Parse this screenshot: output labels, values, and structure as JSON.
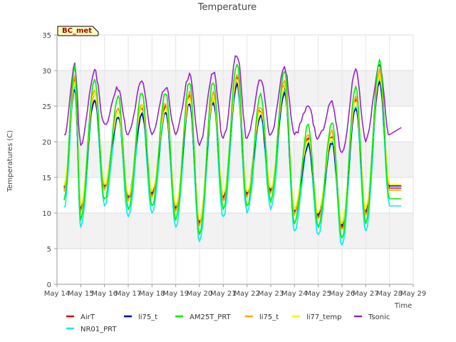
{
  "chart_data": {
    "type": "line",
    "title": "Temperature",
    "badge": "BC_met",
    "xlabel": "Time",
    "ylabel": "Temperatures (C)",
    "xlim": [
      14,
      29
    ],
    "ylim": [
      0,
      35
    ],
    "x_ticks": [
      {
        "day": 14,
        "label": "May 14"
      },
      {
        "day": 15,
        "label": "May 15"
      },
      {
        "day": 16,
        "label": "May 16"
      },
      {
        "day": 17,
        "label": "May 17"
      },
      {
        "day": 18,
        "label": "May 18"
      },
      {
        "day": 19,
        "label": "May 19"
      },
      {
        "day": 20,
        "label": "May 20"
      },
      {
        "day": 21,
        "label": "May 21"
      },
      {
        "day": 22,
        "label": "May 22"
      },
      {
        "day": 23,
        "label": "May 23"
      },
      {
        "day": 24,
        "label": "May 24"
      },
      {
        "day": 25,
        "label": "May 25"
      },
      {
        "day": 26,
        "label": "May 26"
      },
      {
        "day": 27,
        "label": "May 27"
      },
      {
        "day": 28,
        "label": "May 28"
      },
      {
        "day": 29,
        "label": "May 29"
      }
    ],
    "y_ticks": [
      0,
      5,
      10,
      15,
      20,
      25,
      30,
      35
    ],
    "shaded_bands": [
      [
        5,
        10
      ],
      [
        15,
        20
      ],
      [
        25,
        30
      ]
    ],
    "daily_extremes": {
      "days": [
        14.3,
        15,
        16,
        17,
        18,
        19,
        20,
        21,
        22,
        23,
        24,
        25,
        26,
        27,
        28,
        28.5
      ],
      "air_min": [
        13.3,
        10.5,
        13.5,
        12.0,
        12.5,
        10.5,
        8.5,
        12.0,
        12.5,
        13.0,
        10.0,
        9.5,
        8.0,
        10.0,
        13.5,
        13.5
      ],
      "air_max": [
        null,
        28.5,
        27.0,
        24.5,
        25.0,
        25.0,
        26.5,
        26.5,
        29.0,
        24.5,
        28.0,
        20.5,
        21.0,
        26.0,
        29.5,
        null
      ],
      "tsonic_min": [
        21.0,
        19.5,
        22.5,
        21.0,
        21.0,
        21.0,
        19.5,
        20.5,
        20.5,
        21.0,
        21.0,
        20.5,
        18.5,
        20.0,
        21.0,
        22.0
      ],
      "tsonic_max": [
        null,
        30.7,
        29.9,
        27.5,
        28.4,
        27.5,
        29.3,
        29.8,
        32.2,
        28.6,
        30.3,
        24.8,
        25.4,
        30.0,
        30.7,
        null
      ]
    },
    "series": [
      {
        "name": "AirT",
        "color": "#dd0000",
        "min_offset": 0.0,
        "max_offset": 0.0
      },
      {
        "name": "li75_t",
        "color": "#0000bb",
        "min_offset": 0.3,
        "max_offset": -1.0
      },
      {
        "name": "AM25T_PRT",
        "color": "#00ee00",
        "min_offset": -1.5,
        "max_offset": 2.0
      },
      {
        "name": "li75_t",
        "color": "#ffa500",
        "min_offset": -0.3,
        "max_offset": 0.5
      },
      {
        "name": "li77_temp",
        "color": "#ffee00",
        "min_offset": 0.5,
        "max_offset": -0.2
      },
      {
        "name": "Tsonic",
        "color": "#9922cc",
        "min_offset": 0.0,
        "max_offset": 0.0
      },
      {
        "name": "NR01_PRT",
        "color": "#00eeee",
        "min_offset": -2.5,
        "max_offset": -1.0
      }
    ],
    "legend_row1": [
      "AirT",
      "li75_t",
      "AM25T_PRT",
      "li75_t",
      "li77_temp",
      "Tsonic"
    ],
    "legend_row2": [
      "NR01_PRT"
    ],
    "legend_placement": "bottom",
    "grid": true
  }
}
